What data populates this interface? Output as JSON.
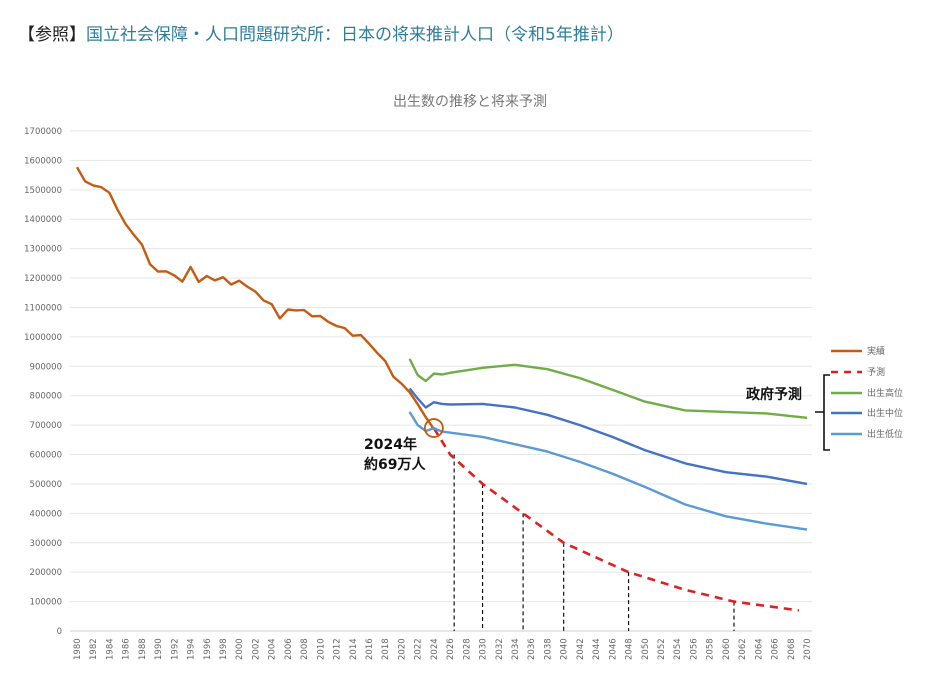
{
  "heading": {
    "prefix": "【参照】",
    "title": "国立社会保障・人口問題研究所：日本の将来推計人口（令和5年推計）"
  },
  "chart_data": {
    "type": "line",
    "title": "出生数の推移と将来予測",
    "xlabel": "",
    "ylabel": "",
    "xlim": [
      1980,
      2070
    ],
    "ylim": [
      0,
      1700000
    ],
    "yticks": [
      0,
      100000,
      200000,
      300000,
      400000,
      500000,
      600000,
      700000,
      800000,
      900000,
      1000000,
      1100000,
      1200000,
      1300000,
      1400000,
      1500000,
      1600000,
      1700000
    ],
    "xtick_step": 2,
    "grid": "horizontal",
    "legend_position": "right",
    "series": [
      {
        "name": "実績",
        "color": "#c55a11",
        "dash": false,
        "x": [
          1980,
          1981,
          1982,
          1983,
          1984,
          1985,
          1986,
          1987,
          1988,
          1989,
          1990,
          1991,
          1992,
          1993,
          1994,
          1995,
          1996,
          1997,
          1998,
          1999,
          2000,
          2001,
          2002,
          2003,
          2004,
          2005,
          2006,
          2007,
          2008,
          2009,
          2010,
          2011,
          2012,
          2013,
          2014,
          2015,
          2016,
          2017,
          2018,
          2019,
          2020,
          2021,
          2022,
          2023,
          2024
        ],
        "y": [
          1577000,
          1529000,
          1515000,
          1509000,
          1490000,
          1432000,
          1383000,
          1347000,
          1314000,
          1247000,
          1222000,
          1223000,
          1209000,
          1188000,
          1238000,
          1187000,
          1207000,
          1192000,
          1203000,
          1178000,
          1191000,
          1171000,
          1154000,
          1124000,
          1111000,
          1063000,
          1093000,
          1090000,
          1091000,
          1070000,
          1071000,
          1051000,
          1037000,
          1030000,
          1004000,
          1006000,
          977000,
          946000,
          918000,
          865000,
          841000,
          812000,
          771000,
          727000,
          686000
        ]
      },
      {
        "name": "予測",
        "color": "#e02020",
        "dash": true,
        "x": [
          2024,
          2026,
          2030,
          2035,
          2040,
          2048,
          2055,
          2061,
          2065,
          2069
        ],
        "y": [
          690000,
          600000,
          500000,
          400000,
          300000,
          200000,
          140000,
          100000,
          85000,
          70000
        ]
      },
      {
        "name": "出生高位",
        "color": "#70ad47",
        "dash": false,
        "x": [
          2021,
          2022,
          2023,
          2024,
          2025,
          2026,
          2030,
          2034,
          2038,
          2042,
          2046,
          2050,
          2055,
          2060,
          2065,
          2070
        ],
        "y": [
          925000,
          870000,
          850000,
          875000,
          872000,
          878000,
          895000,
          905000,
          890000,
          860000,
          820000,
          780000,
          750000,
          745000,
          740000,
          725000
        ]
      },
      {
        "name": "出生中位",
        "color": "#4472c4",
        "dash": false,
        "x": [
          2021,
          2022,
          2023,
          2024,
          2025,
          2026,
          2030,
          2034,
          2038,
          2042,
          2046,
          2050,
          2055,
          2060,
          2065,
          2070
        ],
        "y": [
          825000,
          790000,
          760000,
          778000,
          772000,
          770000,
          772000,
          760000,
          735000,
          700000,
          660000,
          615000,
          570000,
          540000,
          525000,
          500000
        ]
      },
      {
        "name": "出生低位",
        "color": "#5b9bd5",
        "dash": false,
        "x": [
          2021,
          2022,
          2023,
          2024,
          2025,
          2030,
          2034,
          2038,
          2042,
          2046,
          2050,
          2055,
          2060,
          2065,
          2070
        ],
        "y": [
          745000,
          700000,
          680000,
          690000,
          678000,
          660000,
          635000,
          610000,
          575000,
          535000,
          490000,
          430000,
          390000,
          365000,
          345000
        ]
      }
    ],
    "projection_markers": [
      {
        "x": 2026.5,
        "y": 600000
      },
      {
        "x": 2030,
        "y": 500000
      },
      {
        "x": 2035,
        "y": 400000
      },
      {
        "x": 2040,
        "y": 300000
      },
      {
        "x": 2048,
        "y": 200000
      },
      {
        "x": 2061,
        "y": 100000
      }
    ],
    "annotations": {
      "highlight": {
        "x": 2024,
        "y": 690000,
        "line1": "2024年",
        "line2": "約69万人"
      },
      "bracket_label": "政府予測"
    }
  }
}
